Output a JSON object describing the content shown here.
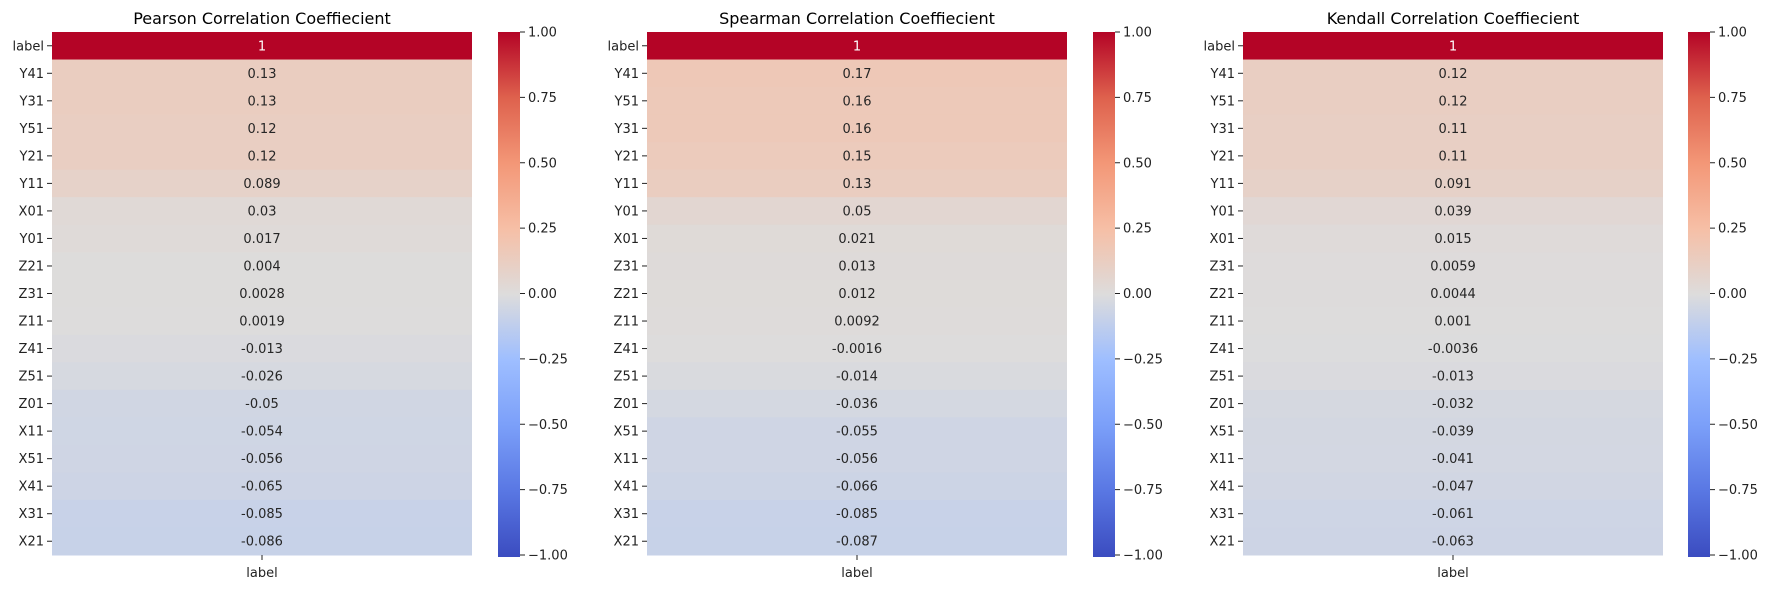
{
  "chart_data": [
    {
      "type": "heatmap",
      "title": "Pearson Correlation Coeffiecient",
      "xlabel": "",
      "ylabel": "",
      "columns": [
        "label"
      ],
      "rows": [
        "label",
        "Y41",
        "Y31",
        "Y51",
        "Y21",
        "Y11",
        "X01",
        "Y01",
        "Z21",
        "Z31",
        "Z11",
        "Z41",
        "Z51",
        "Z01",
        "X11",
        "X51",
        "X41",
        "X31",
        "X21"
      ],
      "values": [
        1,
        0.13,
        0.13,
        0.12,
        0.12,
        0.089,
        0.03,
        0.017,
        0.004,
        0.0028,
        0.0019,
        -0.013,
        -0.026,
        -0.05,
        -0.054,
        -0.056,
        -0.065,
        -0.085,
        -0.086
      ],
      "labels": [
        "1",
        "0.13",
        "0.13",
        "0.12",
        "0.12",
        "0.089",
        "0.03",
        "0.017",
        "0.004",
        "0.0028",
        "0.0019",
        "-0.013",
        "-0.026",
        "-0.05",
        "-0.054",
        "-0.056",
        "-0.065",
        "-0.085",
        "-0.086"
      ],
      "colormap": "coolwarm",
      "vmin": -1,
      "vmax": 1,
      "colorbar_ticks": [
        "1.00",
        "0.75",
        "0.50",
        "0.25",
        "0.00",
        "−0.25",
        "−0.50",
        "−0.75",
        "−1.00"
      ],
      "colorbar_tick_values": [
        1,
        0.75,
        0.5,
        0.25,
        0,
        -0.25,
        -0.5,
        -0.75,
        -1
      ]
    },
    {
      "type": "heatmap",
      "title": "Spearman Correlation Coeffiecient",
      "xlabel": "",
      "ylabel": "",
      "columns": [
        "label"
      ],
      "rows": [
        "label",
        "Y41",
        "Y51",
        "Y31",
        "Y21",
        "Y11",
        "Y01",
        "X01",
        "Z31",
        "Z21",
        "Z11",
        "Z41",
        "Z51",
        "Z01",
        "X51",
        "X11",
        "X41",
        "X31",
        "X21"
      ],
      "values": [
        1,
        0.17,
        0.16,
        0.16,
        0.15,
        0.13,
        0.05,
        0.021,
        0.013,
        0.012,
        0.0092,
        -0.0016,
        -0.014,
        -0.036,
        -0.055,
        -0.056,
        -0.066,
        -0.085,
        -0.087
      ],
      "labels": [
        "1",
        "0.17",
        "0.16",
        "0.16",
        "0.15",
        "0.13",
        "0.05",
        "0.021",
        "0.013",
        "0.012",
        "0.0092",
        "-0.0016",
        "-0.014",
        "-0.036",
        "-0.055",
        "-0.056",
        "-0.066",
        "-0.085",
        "-0.087"
      ],
      "colormap": "coolwarm",
      "vmin": -1,
      "vmax": 1,
      "colorbar_ticks": [
        "1.00",
        "0.75",
        "0.50",
        "0.25",
        "0.00",
        "−0.25",
        "−0.50",
        "−0.75",
        "−1.00"
      ],
      "colorbar_tick_values": [
        1,
        0.75,
        0.5,
        0.25,
        0,
        -0.25,
        -0.5,
        -0.75,
        -1
      ]
    },
    {
      "type": "heatmap",
      "title": "Kendall Correlation Coeffiecient",
      "xlabel": "",
      "ylabel": "",
      "columns": [
        "label"
      ],
      "rows": [
        "label",
        "Y41",
        "Y51",
        "Y31",
        "Y21",
        "Y11",
        "Y01",
        "X01",
        "Z31",
        "Z21",
        "Z11",
        "Z41",
        "Z51",
        "Z01",
        "X51",
        "X11",
        "X41",
        "X31",
        "X21"
      ],
      "values": [
        1,
        0.12,
        0.12,
        0.11,
        0.11,
        0.091,
        0.039,
        0.015,
        0.0059,
        0.0044,
        0.001,
        -0.0036,
        -0.013,
        -0.032,
        -0.039,
        -0.041,
        -0.047,
        -0.061,
        -0.063
      ],
      "labels": [
        "1",
        "0.12",
        "0.12",
        "0.11",
        "0.11",
        "0.091",
        "0.039",
        "0.015",
        "0.0059",
        "0.0044",
        "0.001",
        "-0.0036",
        "-0.013",
        "-0.032",
        "-0.039",
        "-0.041",
        "-0.047",
        "-0.061",
        "-0.063"
      ],
      "colormap": "coolwarm",
      "vmin": -1,
      "vmax": 1,
      "colorbar_ticks": [
        "1.00",
        "0.75",
        "0.50",
        "0.25",
        "0.00",
        "−0.25",
        "−0.50",
        "−0.75",
        "−1.00"
      ],
      "colorbar_tick_values": [
        1,
        0.75,
        0.5,
        0.25,
        0,
        -0.25,
        -0.5,
        -0.75,
        -1
      ]
    }
  ]
}
